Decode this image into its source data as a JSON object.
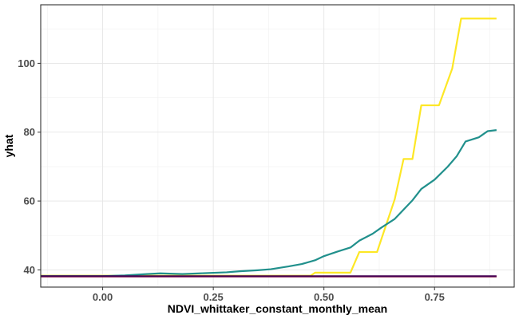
{
  "chart_data": {
    "type": "line",
    "title": "",
    "xlabel": "NDVI_whittaker_constant_monthly_mean",
    "ylabel": "yhat",
    "xlim": [
      -0.14,
      0.93
    ],
    "ylim": [
      35.0,
      117.0
    ],
    "x_ticks": [
      0.0,
      0.25,
      0.5,
      0.75
    ],
    "x_tick_labels": [
      "0.00",
      "0.25",
      "0.50",
      "0.75"
    ],
    "y_ticks": [
      40,
      60,
      80,
      100
    ],
    "y_tick_labels": [
      "40",
      "60",
      "80",
      "100"
    ],
    "grid": true,
    "legend": "none",
    "series": [
      {
        "color": "#fde725",
        "x": [
          -0.14,
          0.47,
          0.48,
          0.56,
          0.58,
          0.62,
          0.66,
          0.68,
          0.7,
          0.72,
          0.76,
          0.79,
          0.81,
          0.89
        ],
        "y": [
          38.3,
          38.3,
          39.2,
          39.2,
          45.2,
          45.2,
          60.5,
          72.2,
          72.2,
          87.8,
          87.8,
          98.5,
          113.0,
          113.0
        ]
      },
      {
        "color": "#21908c",
        "x": [
          -0.14,
          0.0,
          0.05,
          0.1,
          0.13,
          0.18,
          0.22,
          0.28,
          0.31,
          0.35,
          0.38,
          0.42,
          0.45,
          0.48,
          0.5,
          0.53,
          0.56,
          0.58,
          0.61,
          0.63,
          0.66,
          0.68,
          0.7,
          0.72,
          0.75,
          0.78,
          0.8,
          0.82,
          0.85,
          0.87,
          0.89
        ],
        "y": [
          38.2,
          38.2,
          38.4,
          38.8,
          39.0,
          38.8,
          39.0,
          39.3,
          39.6,
          39.9,
          40.2,
          41.0,
          41.7,
          42.8,
          44.0,
          45.3,
          46.5,
          48.5,
          50.5,
          52.3,
          54.8,
          57.5,
          60.2,
          63.5,
          66.2,
          70.0,
          73.0,
          77.3,
          78.5,
          80.3,
          80.6
        ]
      },
      {
        "color": "#e41a1c",
        "x": [
          -0.14,
          0.89
        ],
        "y": [
          38.1,
          38.1
        ]
      },
      {
        "color": "#440154",
        "x": [
          -0.14,
          0.89
        ],
        "y": [
          38.15,
          38.15
        ]
      }
    ]
  }
}
